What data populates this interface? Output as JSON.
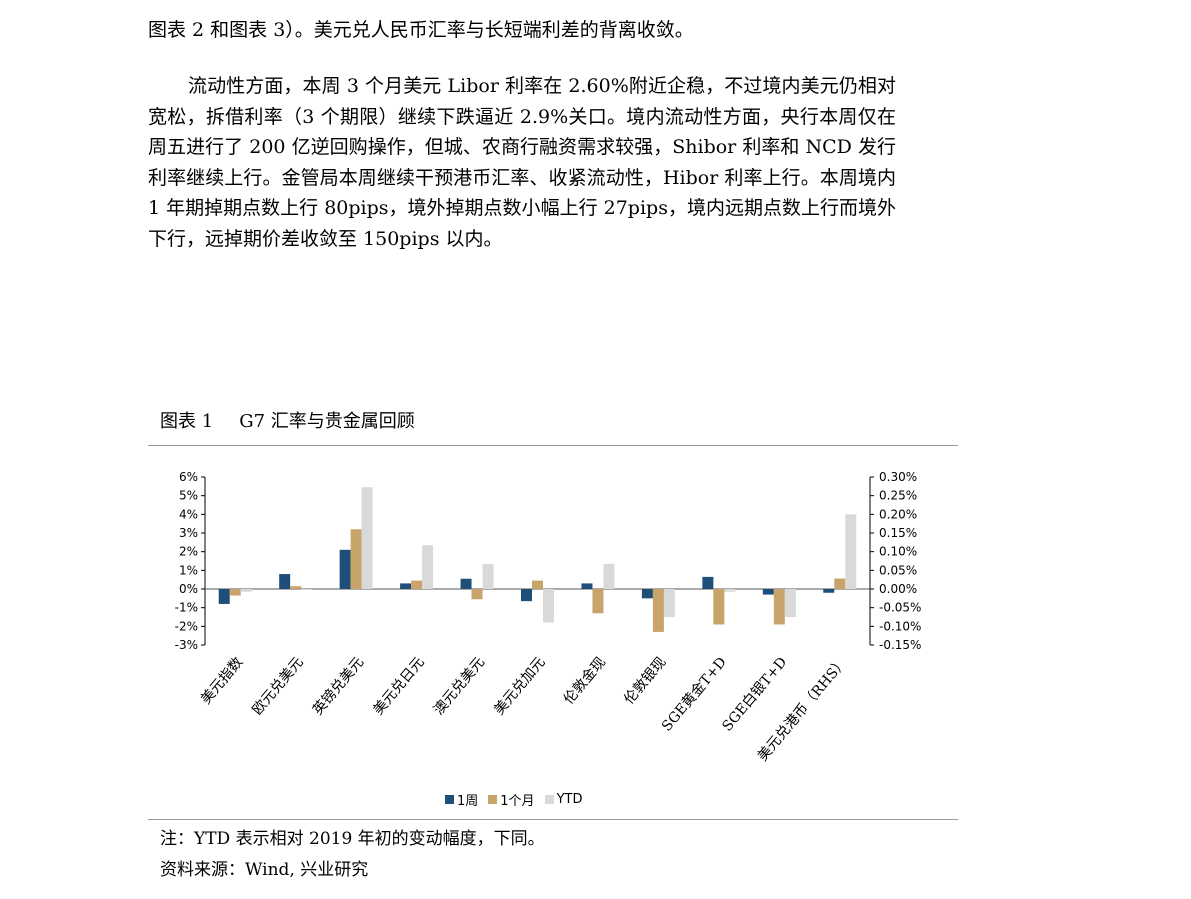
{
  "paragraphs": {
    "top": "图表 2 和图表 3）。美元兑人民币汇率与长短端利差的背离收敛。",
    "main": "流动性方面，本周 3 个月美元 Libor 利率在 2.60%附近企稳，不过境内美元仍相对宽松，拆借利率（3 个期限）继续下跌逼近 2.9%关口。境内流动性方面，央行本周仅在周五进行了 200 亿逆回购操作，但城、农商行融资需求较强，Shibor 利率和 NCD 发行利率继续上行。金管局本周继续干预港币汇率、收紧流动性，Hibor 利率上行。本周境内 1 年期掉期点数上行 80pips，境外掉期点数小幅上行 27pips，境内远期点数上行而境外下行，远掉期价差收敛至 150pips 以内。"
  },
  "figure": {
    "label": "图表 1",
    "title": "G7 汇率与贵金属回顾"
  },
  "notes": {
    "ytd": "注：YTD 表示相对 2019 年初的变动幅度，下同。",
    "source": "资料来源：Wind, 兴业研究"
  },
  "colors": {
    "week": "#1f4e79",
    "month": "#c9a46a",
    "ytd": "#d9d9d9",
    "axis": "#000000"
  },
  "chart_data": {
    "type": "bar",
    "categories": [
      "美元指数",
      "欧元兑美元",
      "英镑兑美元",
      "美元兑日元",
      "澳元兑美元",
      "美元兑加元",
      "伦敦金现",
      "伦敦银现",
      "SGE黄金T+D",
      "SGE白银T+D",
      "美元兑港币（RHS）"
    ],
    "series": [
      {
        "name": "1周",
        "values": [
          -0.8,
          0.8,
          2.1,
          0.3,
          0.55,
          -0.65,
          0.3,
          -0.5,
          0.65,
          -0.3,
          -0.01
        ],
        "rhs_last": true
      },
      {
        "name": "1个月",
        "values": [
          -0.35,
          0.15,
          3.2,
          0.45,
          -0.55,
          0.45,
          -1.3,
          -2.3,
          -1.9,
          -1.9,
          0.028
        ],
        "rhs_last": true
      },
      {
        "name": "YTD",
        "values": [
          -0.15,
          -0.05,
          5.45,
          2.35,
          1.35,
          -1.8,
          1.35,
          -1.5,
          -0.15,
          -1.5,
          0.2
        ],
        "rhs_last": true
      }
    ],
    "ylim": [
      -3,
      6
    ],
    "y_ticks": [
      "6%",
      "5%",
      "4%",
      "3%",
      "2%",
      "1%",
      "0%",
      "-1%",
      "-2%",
      "-3%"
    ],
    "y2lim": [
      -0.15,
      0.3
    ],
    "y2_ticks": [
      "0.30%",
      "0.25%",
      "0.20%",
      "0.15%",
      "0.10%",
      "0.05%",
      "0.00%",
      "-0.05%",
      "-0.10%",
      "-0.15%"
    ],
    "legend_position": "bottom-center"
  }
}
